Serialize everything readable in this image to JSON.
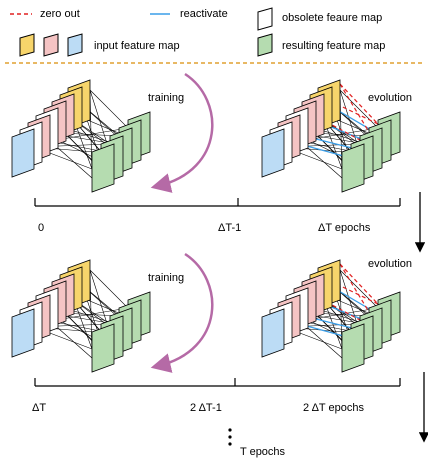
{
  "legend": {
    "zero_out": "zero out",
    "reactivate": "reactivate",
    "obsolete": "obsolete feaure map",
    "input": "input feature map",
    "resulting": "resulting feature map"
  },
  "stages": [
    {
      "left_label": "training",
      "right_label": "evolution",
      "timeline": {
        "start": "0",
        "middle": "ΔT-1",
        "end": "ΔT epochs"
      }
    },
    {
      "left_label": "training",
      "right_label": "evolution",
      "timeline": {
        "start": "ΔT",
        "middle": "2 ΔT-1",
        "end": "2 ΔT epochs"
      }
    }
  ],
  "final": "T epochs"
}
